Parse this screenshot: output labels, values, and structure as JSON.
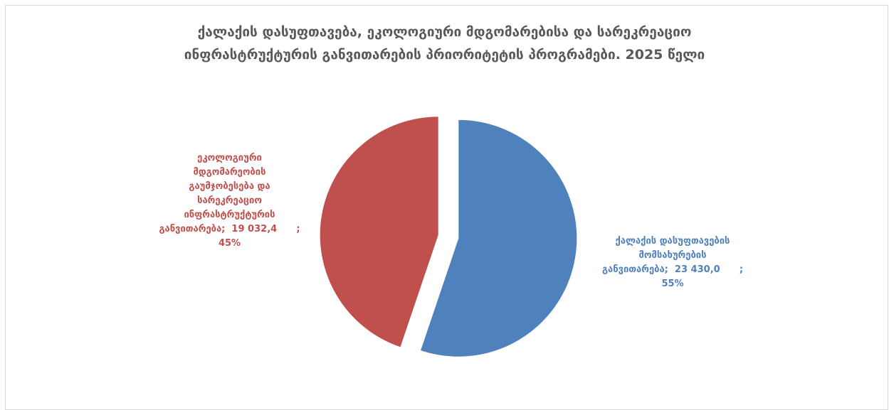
{
  "chart_data": {
    "type": "pie",
    "title_lines": [
      "ქალაქის დასუფთავება, ეკოლოგიური მდგომარებისა და სარეკრეაციო",
      "ინფრასტრუქტურის განვითარების პრიორიტეტის პროგრამები. 2025 წელი"
    ],
    "slices": [
      {
        "label_lines": [
          "ქალაქის დასუფთავების",
          "მომსახურების",
          "განვითარება;  23 430,0      ;",
          "55%"
        ],
        "value": 23430.0,
        "percent": 55,
        "color": "#4f81bd"
      },
      {
        "label_lines": [
          "ეკოლოგიური",
          "მდგომარეობის",
          "გაუმჯობესება და",
          "სარეკრეაციო",
          "ინფრასტრუქტურის",
          "განვითარება;  19 032,4      ;",
          "45%"
        ],
        "value": 19032.4,
        "percent": 45,
        "color": "#c0504d"
      }
    ]
  }
}
